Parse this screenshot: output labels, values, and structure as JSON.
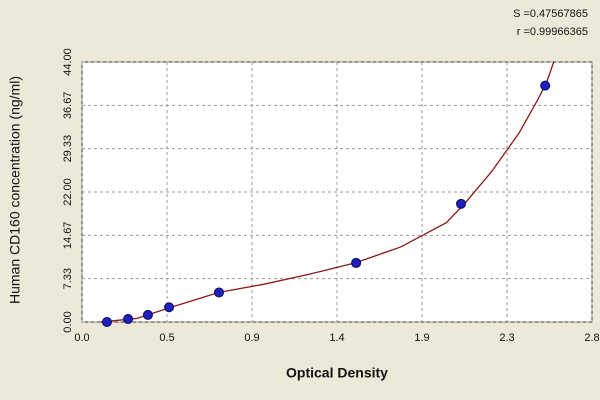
{
  "chart_data": {
    "type": "scatter",
    "x_label": "Optical Density",
    "y_label": "Human CD160 concentration (ng/ml)",
    "annotations": [
      "S =0.47567865",
      "r =0.99966365"
    ],
    "xlim": [
      0,
      2.8
    ],
    "ylim": [
      0,
      44
    ],
    "xticks": [
      {
        "value": 0,
        "label": "0.0"
      },
      {
        "value": 0.4667,
        "label": "0.5"
      },
      {
        "value": 0.9333,
        "label": "0.9"
      },
      1.4,
      {
        "value": 1.8667,
        "label": "1.9"
      },
      {
        "value": 2.3333,
        "label": "2.3"
      },
      2.8
    ],
    "yticks": [
      {
        "value": 0,
        "label": "0.00"
      },
      {
        "value": 7.333,
        "label": "7.33"
      },
      {
        "value": 14.667,
        "label": "14.67"
      },
      {
        "value": 22,
        "label": "22.00"
      },
      {
        "value": 29.333,
        "label": "29.33"
      },
      {
        "value": 36.667,
        "label": "36.67"
      },
      {
        "value": 44,
        "label": "44.00"
      }
    ],
    "grid": true,
    "series": [
      {
        "type": "line",
        "color": "#8b1a1a",
        "x": [
          0.1,
          0.3,
          0.5,
          0.75,
          1.0,
          1.25,
          1.5,
          1.75,
          2.0,
          2.1,
          2.25,
          2.4,
          2.5,
          2.55,
          2.59
        ],
        "values": [
          0,
          0.6,
          2.6,
          5.0,
          6.4,
          8.1,
          10.0,
          12.7,
          16.8,
          20.0,
          25.5,
          32.0,
          37.5,
          40.5,
          44
        ]
      },
      {
        "type": "scatter",
        "color": "#1f1fbf",
        "x": [
          0.137,
          0.253,
          0.362,
          0.478,
          0.752,
          1.505,
          2.081,
          2.543
        ],
        "values": [
          0,
          0.5,
          1.2,
          2.5,
          5,
          10,
          20,
          40
        ]
      }
    ]
  }
}
